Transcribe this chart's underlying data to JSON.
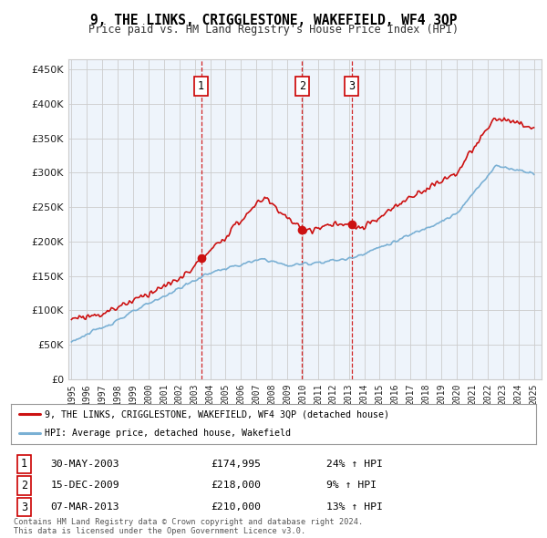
{
  "title": "9, THE LINKS, CRIGGLESTONE, WAKEFIELD, WF4 3QP",
  "subtitle": "Price paid vs. HM Land Registry's House Price Index (HPI)",
  "yticks": [
    0,
    50000,
    100000,
    150000,
    200000,
    250000,
    300000,
    350000,
    400000,
    450000
  ],
  "ylim": [
    0,
    465000
  ],
  "xlim_start": 1994.8,
  "xlim_end": 2025.5,
  "sale_dates": [
    2003.41,
    2009.96,
    2013.18
  ],
  "sale_prices": [
    174995,
    218000,
    210000
  ],
  "sale_labels": [
    "1",
    "2",
    "3"
  ],
  "vline_color": "#cc0000",
  "hpi_line_color": "#7ab0d4",
  "price_line_color": "#cc1111",
  "chart_bg": "#eef4fb",
  "legend_label_price": "9, THE LINKS, CRIGGLESTONE, WAKEFIELD, WF4 3QP (detached house)",
  "legend_label_hpi": "HPI: Average price, detached house, Wakefield",
  "table_rows": [
    {
      "num": "1",
      "date": "30-MAY-2003",
      "price": "£174,995",
      "hpi": "24% ↑ HPI"
    },
    {
      "num": "2",
      "date": "15-DEC-2009",
      "price": "£218,000",
      "hpi": "9% ↑ HPI"
    },
    {
      "num": "3",
      "date": "07-MAR-2013",
      "price": "£210,000",
      "hpi": "13% ↑ HPI"
    }
  ],
  "footer": "Contains HM Land Registry data © Crown copyright and database right 2024.\nThis data is licensed under the Open Government Licence v3.0.",
  "background_color": "#ffffff",
  "grid_color": "#cccccc",
  "xticks": [
    1995,
    1996,
    1997,
    1998,
    1999,
    2000,
    2001,
    2002,
    2003,
    2004,
    2005,
    2006,
    2007,
    2008,
    2009,
    2010,
    2011,
    2012,
    2013,
    2014,
    2015,
    2016,
    2017,
    2018,
    2019,
    2020,
    2021,
    2022,
    2023,
    2024,
    2025
  ]
}
